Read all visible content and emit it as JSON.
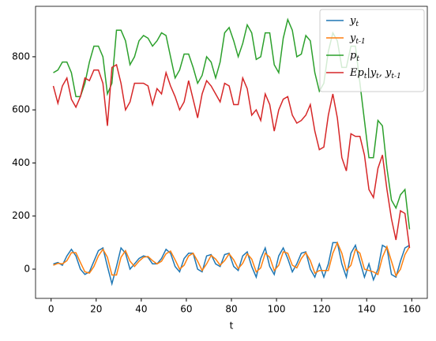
{
  "chart_data": {
    "type": "line",
    "xlabel": "t",
    "x": [
      1,
      3,
      5,
      7,
      9,
      11,
      13,
      15,
      17,
      19,
      21,
      23,
      25,
      27,
      29,
      31,
      33,
      35,
      37,
      39,
      41,
      43,
      45,
      47,
      49,
      51,
      53,
      55,
      57,
      59,
      61,
      63,
      65,
      67,
      69,
      71,
      73,
      75,
      77,
      79,
      81,
      83,
      85,
      87,
      89,
      91,
      93,
      95,
      97,
      99,
      101,
      103,
      105,
      107,
      109,
      111,
      113,
      115,
      117,
      119,
      121,
      123,
      125,
      127,
      129,
      131,
      133,
      135,
      137,
      139,
      141,
      143,
      145,
      147,
      149,
      151,
      153,
      155,
      157,
      159
    ],
    "series": [
      {
        "name": "y_t",
        "color": "#1f77b4",
        "values": [
          20,
          25,
          15,
          50,
          75,
          50,
          0,
          -20,
          -10,
          30,
          70,
          80,
          10,
          -55,
          10,
          80,
          60,
          0,
          20,
          40,
          50,
          45,
          20,
          20,
          40,
          75,
          60,
          10,
          -10,
          40,
          60,
          60,
          0,
          -10,
          50,
          55,
          20,
          10,
          55,
          60,
          10,
          -5,
          50,
          65,
          10,
          -30,
          40,
          80,
          10,
          -20,
          50,
          80,
          40,
          -10,
          20,
          60,
          65,
          0,
          -30,
          20,
          -30,
          20,
          100,
          100,
          20,
          -30,
          60,
          90,
          30,
          -30,
          20,
          -40,
          0,
          90,
          80,
          -20,
          -30,
          30,
          80,
          90
        ]
      },
      {
        "name": "y_{t-1}",
        "color": "#ff7f0e",
        "values": [
          15,
          22,
          20,
          32,
          62,
          62,
          25,
          -10,
          -15,
          10,
          50,
          75,
          45,
          -22,
          -22,
          45,
          70,
          30,
          10,
          30,
          45,
          48,
          32,
          20,
          30,
          58,
          68,
          35,
          0,
          15,
          50,
          60,
          30,
          -5,
          20,
          52,
          38,
          15,
          32,
          58,
          35,
          2,
          22,
          58,
          38,
          -10,
          5,
          60,
          45,
          -5,
          15,
          65,
          60,
          15,
          5,
          40,
          62,
          32,
          -15,
          -5,
          -5,
          -5,
          60,
          100,
          60,
          -5,
          15,
          75,
          60,
          0,
          -5,
          -10,
          -20,
          45,
          85,
          30,
          -25,
          0,
          55,
          85
        ]
      },
      {
        "name": "p_t",
        "color": "#2ca02c",
        "values": [
          740,
          750,
          780,
          780,
          740,
          650,
          650,
          700,
          780,
          840,
          840,
          800,
          660,
          700,
          900,
          900,
          860,
          770,
          800,
          860,
          880,
          870,
          840,
          860,
          890,
          880,
          800,
          720,
          750,
          810,
          810,
          760,
          700,
          730,
          800,
          780,
          720,
          780,
          890,
          910,
          860,
          800,
          850,
          920,
          890,
          790,
          800,
          890,
          890,
          770,
          740,
          870,
          940,
          900,
          800,
          810,
          880,
          860,
          740,
          670,
          700,
          820,
          890,
          860,
          760,
          760,
          840,
          840,
          700,
          560,
          420,
          420,
          560,
          540,
          380,
          260,
          230,
          280,
          300,
          150
        ]
      },
      {
        "name": "Ep_t|y_t, y_{t-1}",
        "color": "#d62728",
        "values": [
          690,
          625,
          690,
          720,
          640,
          610,
          650,
          720,
          710,
          750,
          750,
          700,
          540,
          760,
          770,
          700,
          600,
          630,
          700,
          700,
          700,
          690,
          620,
          680,
          660,
          740,
          690,
          650,
          600,
          630,
          710,
          640,
          570,
          660,
          710,
          690,
          660,
          630,
          700,
          690,
          620,
          620,
          720,
          680,
          580,
          600,
          560,
          660,
          620,
          520,
          600,
          640,
          650,
          580,
          550,
          560,
          580,
          620,
          520,
          450,
          460,
          580,
          660,
          570,
          420,
          370,
          510,
          500,
          500,
          430,
          300,
          270,
          380,
          430,
          300,
          190,
          110,
          220,
          210,
          80
        ]
      }
    ],
    "xlim": [
      -6.9,
      166.9
    ],
    "xticks": [
      0,
      20,
      40,
      60,
      80,
      100,
      120,
      140,
      160
    ],
    "ylim": [
      -110,
      990
    ],
    "yticks": [
      0,
      200,
      400,
      600,
      800
    ],
    "legend": "upper right"
  }
}
